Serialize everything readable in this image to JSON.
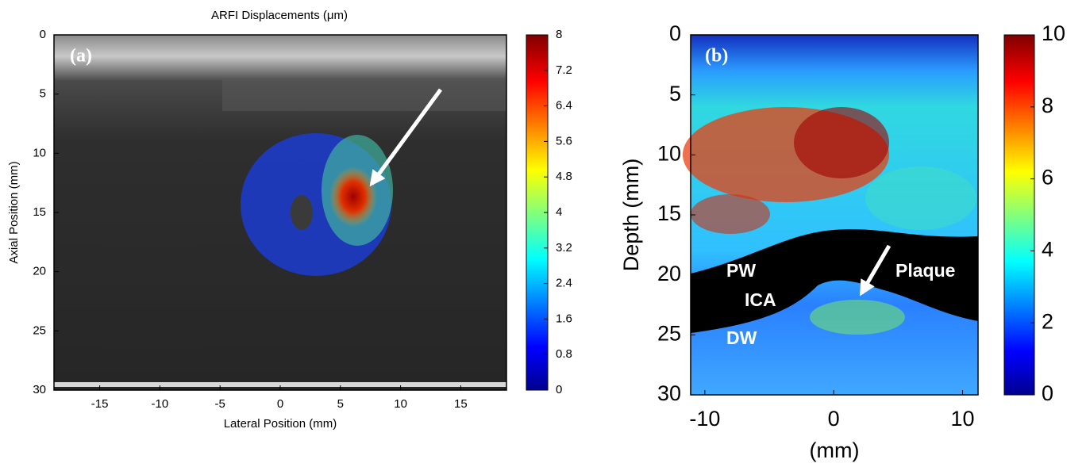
{
  "chart_data": [
    {
      "type": "image",
      "title": "ARFI Displacements (μm)",
      "panel_label": "(a)",
      "x_label": "Lateral Position (mm)",
      "y_label": "Axial Position (mm)",
      "xlim": [
        -18.8,
        18.8
      ],
      "xticks": [
        -15,
        -10,
        -5,
        0,
        5,
        10,
        15
      ],
      "ylim": [
        0,
        30
      ],
      "yticks": [
        0,
        5,
        10,
        15,
        20,
        25,
        30
      ],
      "clim": [
        0,
        8
      ],
      "cticks": [
        0,
        0.8,
        1.6,
        2.4,
        3.2,
        4,
        4.8,
        5.6,
        6.4,
        7.2,
        8
      ]
    },
    {
      "type": "image",
      "panel_label": "(b)",
      "x_label": "(mm)",
      "y_label": "Depth (mm)",
      "xlim": [
        -11.1,
        11.2
      ],
      "xticks": [
        -10,
        0,
        10
      ],
      "ylim": [
        0,
        30
      ],
      "yticks": [
        0,
        5,
        10,
        15,
        20,
        25,
        30
      ],
      "clim": [
        0,
        10
      ],
      "cticks": [
        0,
        2,
        4,
        6,
        8,
        10
      ],
      "annotations": [
        "PW",
        "ICA",
        "DW",
        "Plaque"
      ]
    }
  ]
}
